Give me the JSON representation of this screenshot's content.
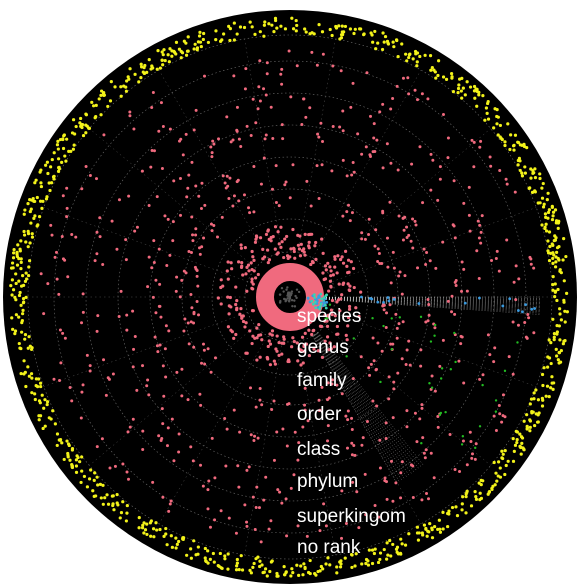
{
  "rank_labels": [
    "species",
    "genus",
    "family",
    "order",
    "class",
    "phylum",
    "superkingom",
    "no rank"
  ],
  "colors": {
    "background": "#000000",
    "page": "#ffffff",
    "ring_dots": "#f06a7e",
    "outer_ring_dots": "#f2f21a",
    "accent_blue": "#3a9be0",
    "accent_green": "#22bb22",
    "accent_teal": "#3ad4b0",
    "grid": "#8a8a8a",
    "label": "#ffffff"
  }
}
